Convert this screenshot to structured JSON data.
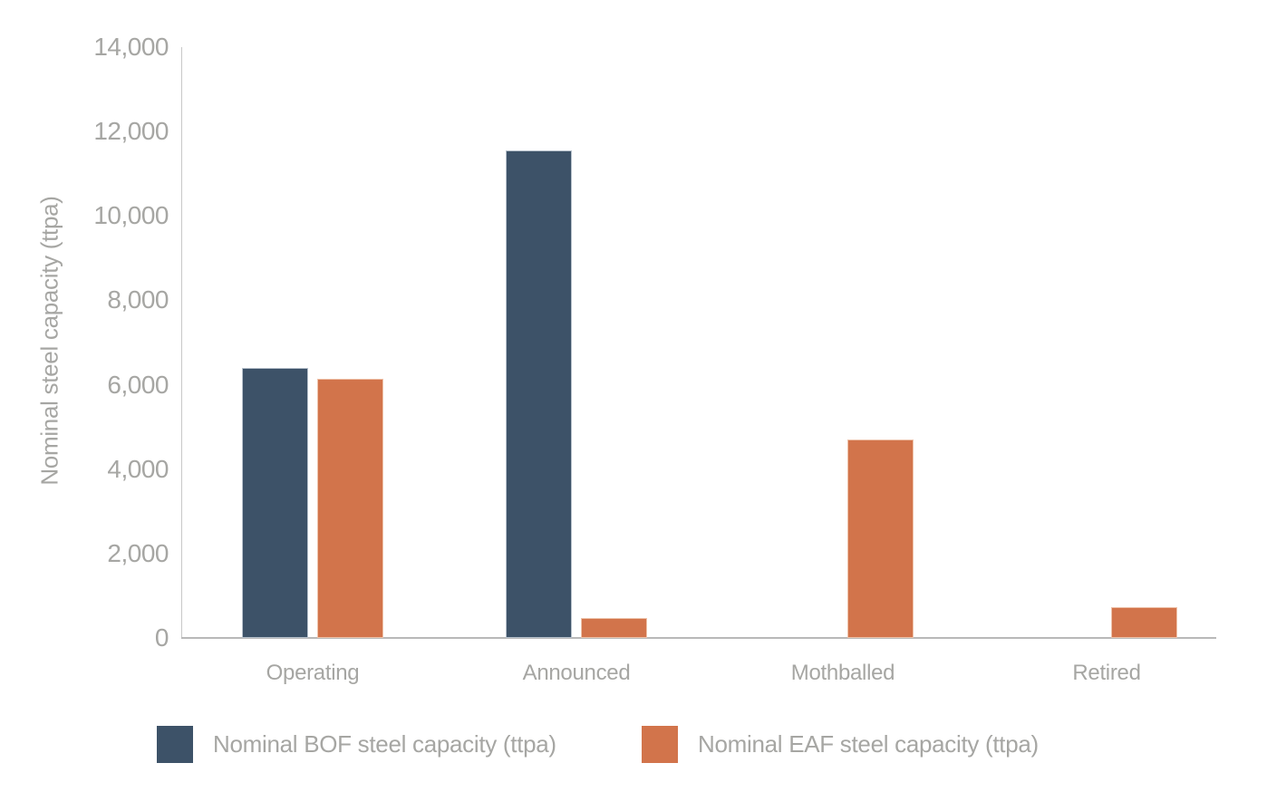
{
  "chart_data": {
    "type": "bar",
    "title": "",
    "xlabel": "",
    "ylabel": "Nominal steel capacity (ttpa)",
    "categories": [
      "Operating",
      "Announced",
      "Mothballed",
      "Retired"
    ],
    "series": [
      {
        "name": "Nominal BOF steel capacity (ttpa)",
        "color": "#3d5268",
        "border_color": "#b7c1cc",
        "values": [
          6400,
          11550,
          0,
          0
        ]
      },
      {
        "name": "Nominal EAF steel capacity (ttpa)",
        "color": "#d2744b",
        "border_color": "#eec2a9",
        "values": [
          6150,
          480,
          4700,
          740
        ]
      }
    ],
    "ylim": [
      0,
      14000
    ],
    "ytick_interval": 2000,
    "yticks": [
      "0",
      "2,000",
      "4,000",
      "6,000",
      "8,000",
      "10,000",
      "12,000",
      "14,000"
    ],
    "grid": false,
    "legend_position": "bottom",
    "axis_color": "#bcbcbc",
    "label_color": "#a6a6a3"
  }
}
